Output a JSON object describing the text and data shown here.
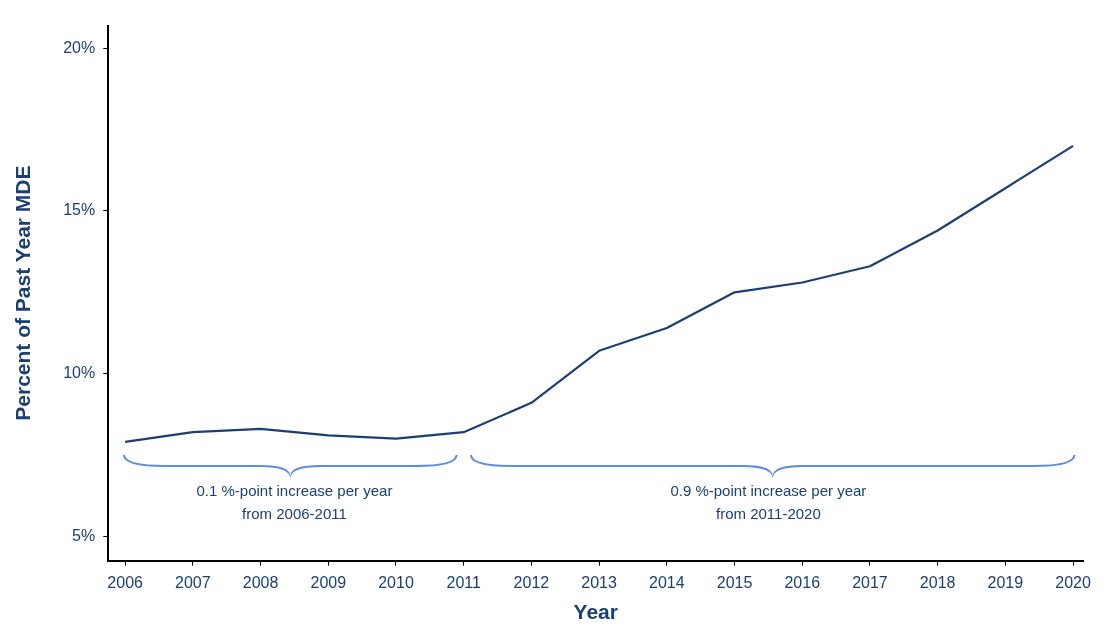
{
  "chart_data": {
    "type": "line",
    "xlabel": "Year",
    "ylabel": "Percent of Past Year MDE",
    "x": [
      2006,
      2007,
      2008,
      2009,
      2010,
      2011,
      2012,
      2013,
      2014,
      2015,
      2016,
      2017,
      2018,
      2019,
      2020
    ],
    "series": [
      {
        "color": "#1b3f73",
        "values": [
          7.9,
          8.2,
          8.3,
          8.1,
          8.0,
          8.2,
          9.1,
          10.7,
          11.4,
          12.5,
          12.8,
          13.3,
          14.4,
          15.7,
          17.0
        ]
      }
    ],
    "xlim": [
      2005.75,
      2020.15
    ],
    "xticks": [
      2006,
      2007,
      2008,
      2009,
      2010,
      2011,
      2012,
      2013,
      2014,
      2015,
      2016,
      2017,
      2018,
      2019,
      2020
    ],
    "ylim": [
      4.25,
      20.7
    ],
    "yticks": [
      {
        "value": 5,
        "label": "5%"
      },
      {
        "value": 10,
        "label": "10%"
      },
      {
        "value": 15,
        "label": "15%"
      },
      {
        "value": 20,
        "label": "20%"
      }
    ],
    "grid": false,
    "legend": false,
    "marker": "none",
    "line_style": "solid",
    "annotations": [
      "0.1 %-point increase per year\nfrom 2006-2011",
      "0.9 %-point increase per year\nfrom 2011-2020"
    ]
  }
}
